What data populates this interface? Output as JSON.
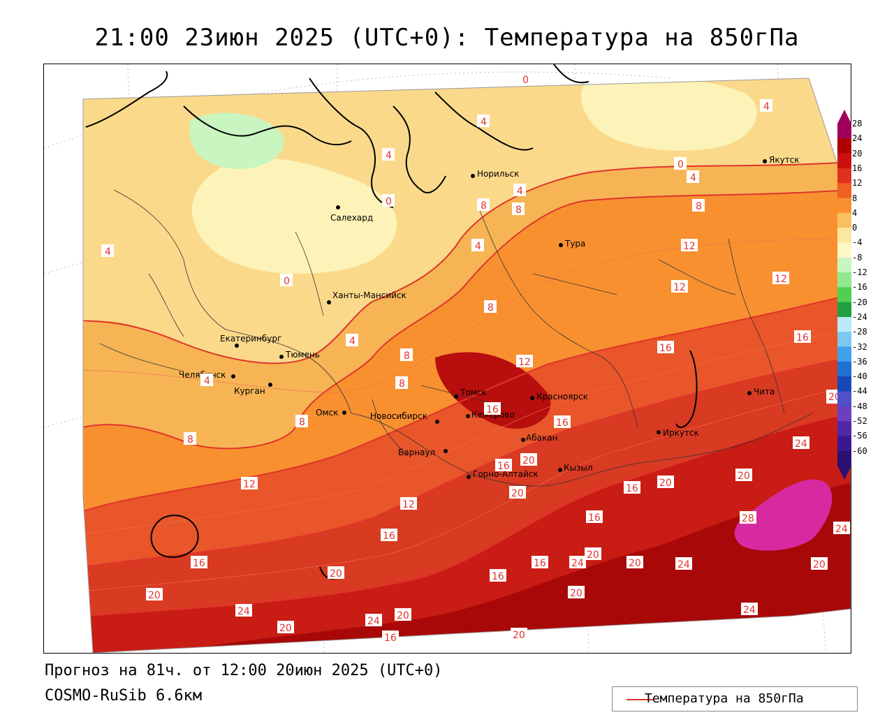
{
  "title": "21:00 23июн 2025 (UTC+0): Температура на 850гПа",
  "footer": {
    "forecast": "Прогноз на 81ч. от 12:00 20июн 2025 (UTC+0)",
    "model": "COSMO-RuSib 6.6км"
  },
  "legend": {
    "label": "Температура на 850гПа",
    "line_color": "#e0342b"
  },
  "colorbar": {
    "labels": [
      "28",
      "24",
      "20",
      "16",
      "12",
      "8",
      "4",
      "0",
      "-4",
      "-8",
      "-12",
      "-16",
      "-20",
      "-24",
      "-28",
      "-32",
      "-36",
      "-40",
      "-44",
      "-48",
      "-52",
      "-56",
      "-60"
    ],
    "colors": [
      "#a0005a",
      "#b00000",
      "#cc1010",
      "#e03020",
      "#f06020",
      "#f89030",
      "#f8c060",
      "#fbe7a0",
      "#fdf8c8",
      "#c8f5c0",
      "#90e890",
      "#50d050",
      "#20a040",
      "#b8eaf8",
      "#7cc8f0",
      "#40a0e8",
      "#2070d0",
      "#1848b8",
      "#5050c8",
      "#6a40c0",
      "#5028a8",
      "#3c1890",
      "#2a1070"
    ]
  },
  "cities": [
    {
      "name": "Салехард"
    },
    {
      "name": "Норильск"
    },
    {
      "name": "Тура"
    },
    {
      "name": "Якутск"
    },
    {
      "name": "Ханты-Мансийск"
    },
    {
      "name": "Екатеринбург"
    },
    {
      "name": "Тюмень"
    },
    {
      "name": "Челябинск"
    },
    {
      "name": "Курган"
    },
    {
      "name": "Омск"
    },
    {
      "name": "Новосибирск"
    },
    {
      "name": "Томск"
    },
    {
      "name": "Кемерово"
    },
    {
      "name": "Красноярск"
    },
    {
      "name": "Барнаул"
    },
    {
      "name": "Абакан"
    },
    {
      "name": "Горно-Алтайск"
    },
    {
      "name": "Кызыл"
    },
    {
      "name": "Иркутск"
    },
    {
      "name": "Чита"
    }
  ],
  "isotherm_labels": [
    "0",
    "4",
    "8",
    "12",
    "16",
    "20",
    "24",
    "28"
  ]
}
